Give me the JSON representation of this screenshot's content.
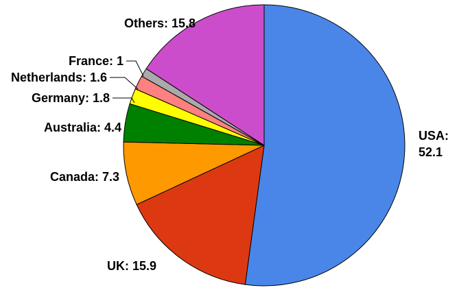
{
  "chart_data": {
    "type": "pie",
    "title": "",
    "slices": [
      {
        "name": "USA",
        "value": 52.1,
        "color": "#4a86e8",
        "label": "USA: 52.1"
      },
      {
        "name": "UK",
        "value": 15.9,
        "color": "#dc3912",
        "label": "UK: 15.9"
      },
      {
        "name": "Canada",
        "value": 7.3,
        "color": "#ff9900",
        "label": "Canada: 7.3"
      },
      {
        "name": "Australia",
        "value": 4.4,
        "color": "#008000",
        "label": "Australia: 4.4"
      },
      {
        "name": "Germany",
        "value": 1.8,
        "color": "#ffff00",
        "label": "Germany: 1.8"
      },
      {
        "name": "Netherlands",
        "value": 1.6,
        "color": "#ff8080",
        "label": "Netherlands: 1.6"
      },
      {
        "name": "France",
        "value": 1,
        "color": "#aaaaaa",
        "label": "France: 1"
      },
      {
        "name": "Others",
        "value": 15.8,
        "color": "#cc4dcc",
        "label": "Others: 15.8"
      }
    ],
    "start": "12 o'clock",
    "direction": "clockwise",
    "legend": "none"
  }
}
